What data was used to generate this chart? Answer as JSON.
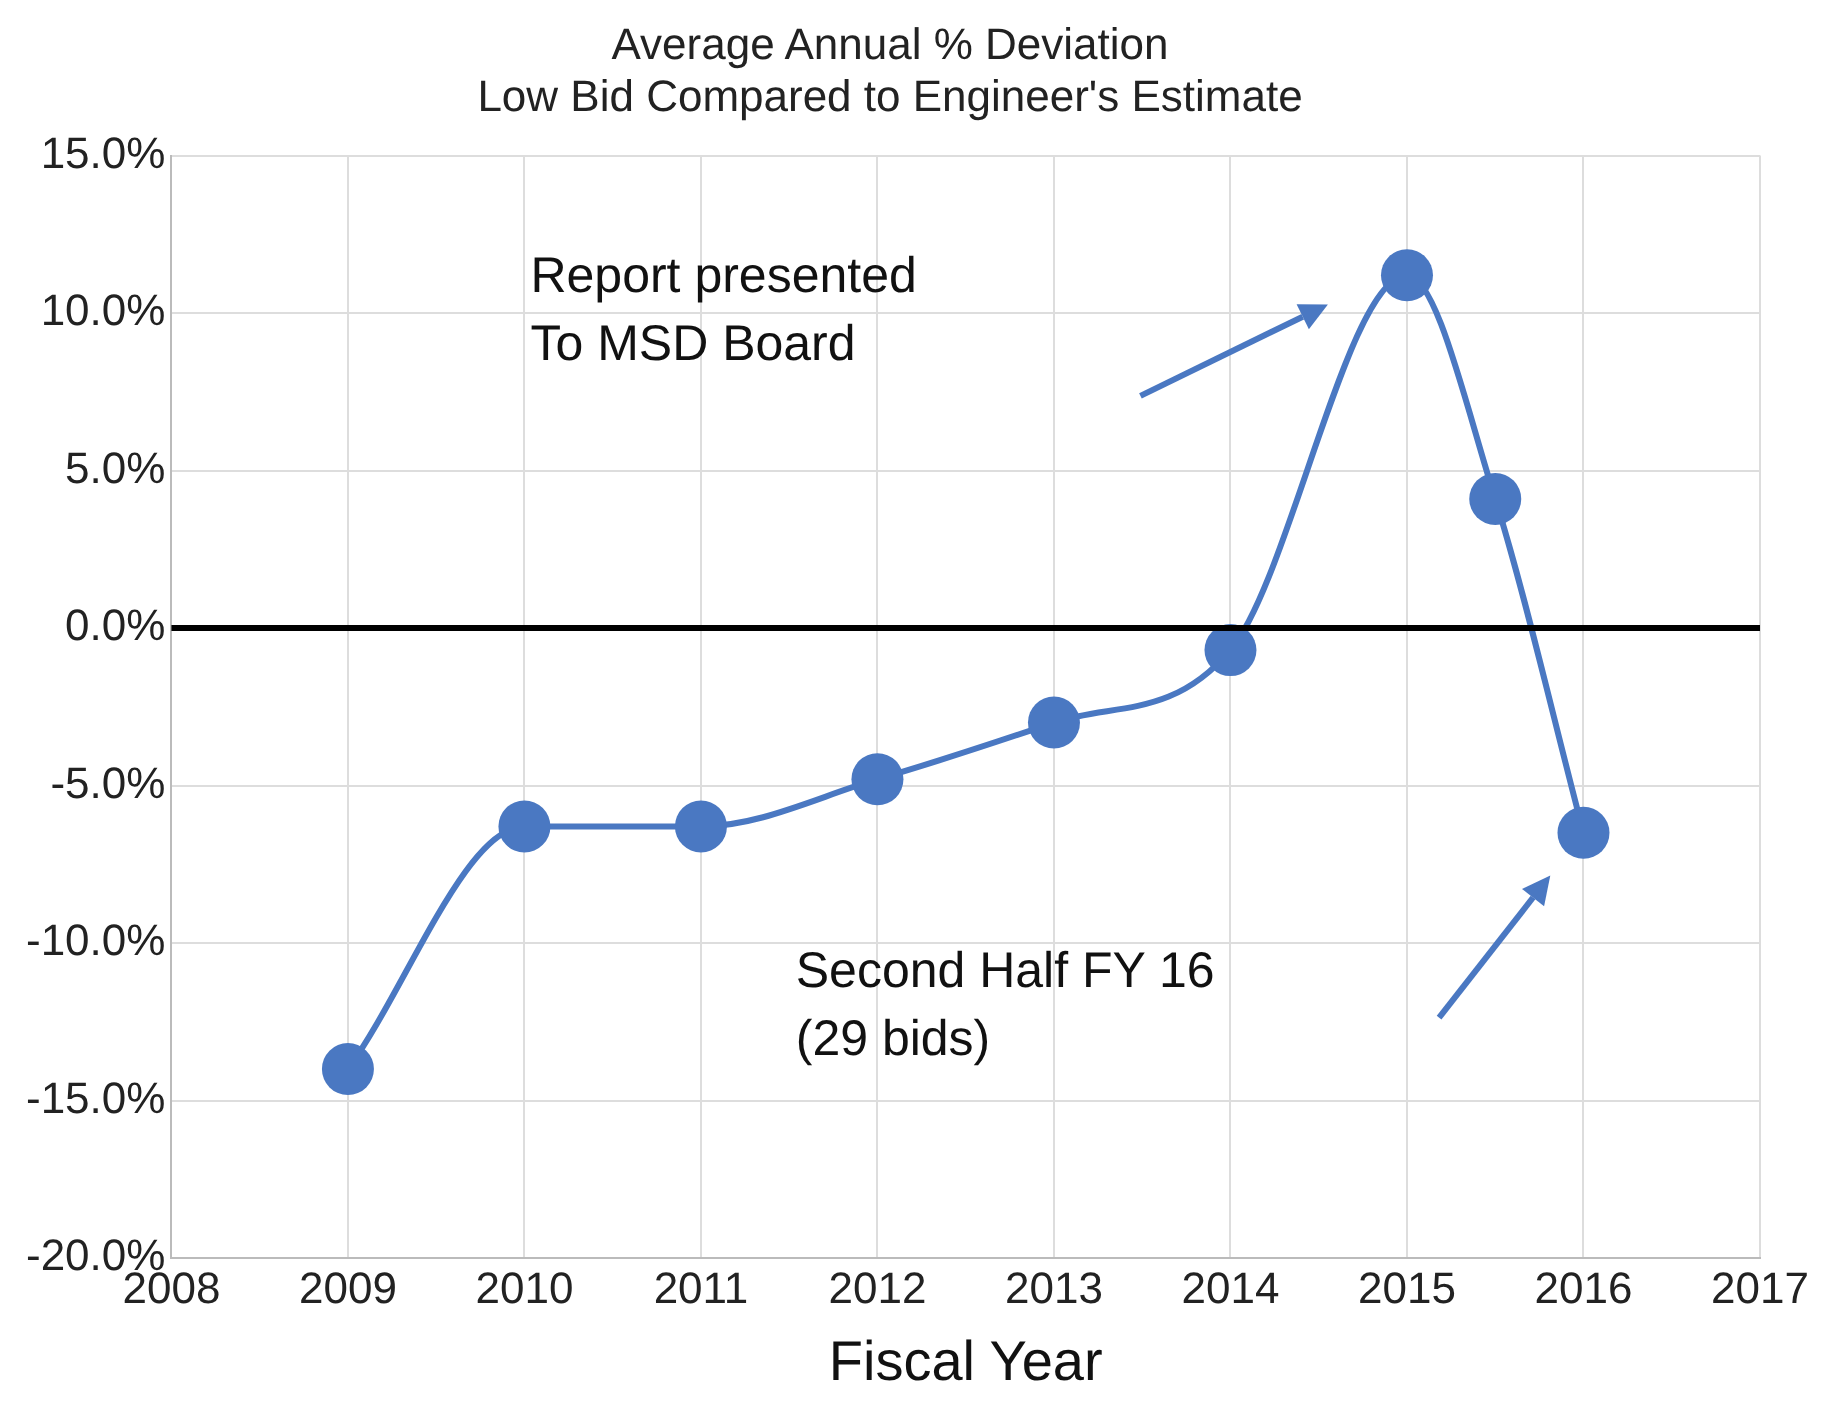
{
  "chart_data": {
    "type": "line",
    "title": "Average Annual % Deviation\nLow Bid Compared to Engineer's Estimate",
    "xlabel": "Fiscal Year",
    "x": [
      2009,
      2010,
      2011,
      2012,
      2013,
      2014,
      2015,
      2015.5,
      2016
    ],
    "series": [
      {
        "color": "#4a78c2",
        "values": [
          -14.0,
          -6.3,
          -6.3,
          -4.8,
          -3.0,
          -0.7,
          11.2,
          4.1,
          -6.5
        ]
      }
    ],
    "xlim": [
      2008,
      2017
    ],
    "xticks": [
      2008,
      2009,
      2010,
      2011,
      2012,
      2013,
      2014,
      2015,
      2016,
      2017
    ],
    "ylim": [
      -20,
      15
    ],
    "yticks": [
      {
        "value": -20,
        "label": "-20.0%"
      },
      {
        "value": -15,
        "label": "-15.0%"
      },
      {
        "value": -10,
        "label": "-10.0%"
      },
      {
        "value": -5,
        "label": "-5.0%"
      },
      {
        "value": 0,
        "label": "0.0%"
      },
      {
        "value": 5,
        "label": "5.0%"
      },
      {
        "value": 10,
        "label": "10.0%"
      },
      {
        "value": 15,
        "label": "15.0%"
      }
    ],
    "ref_lines": [
      {
        "axis": "y",
        "value": 0,
        "color": "#000000"
      }
    ],
    "annotations": [
      "Report presented\nTo MSD Board",
      "Second Half FY 16\n(29 bids)"
    ],
    "grid": true,
    "legend": false,
    "marker": "circle",
    "line_style": "solid"
  }
}
